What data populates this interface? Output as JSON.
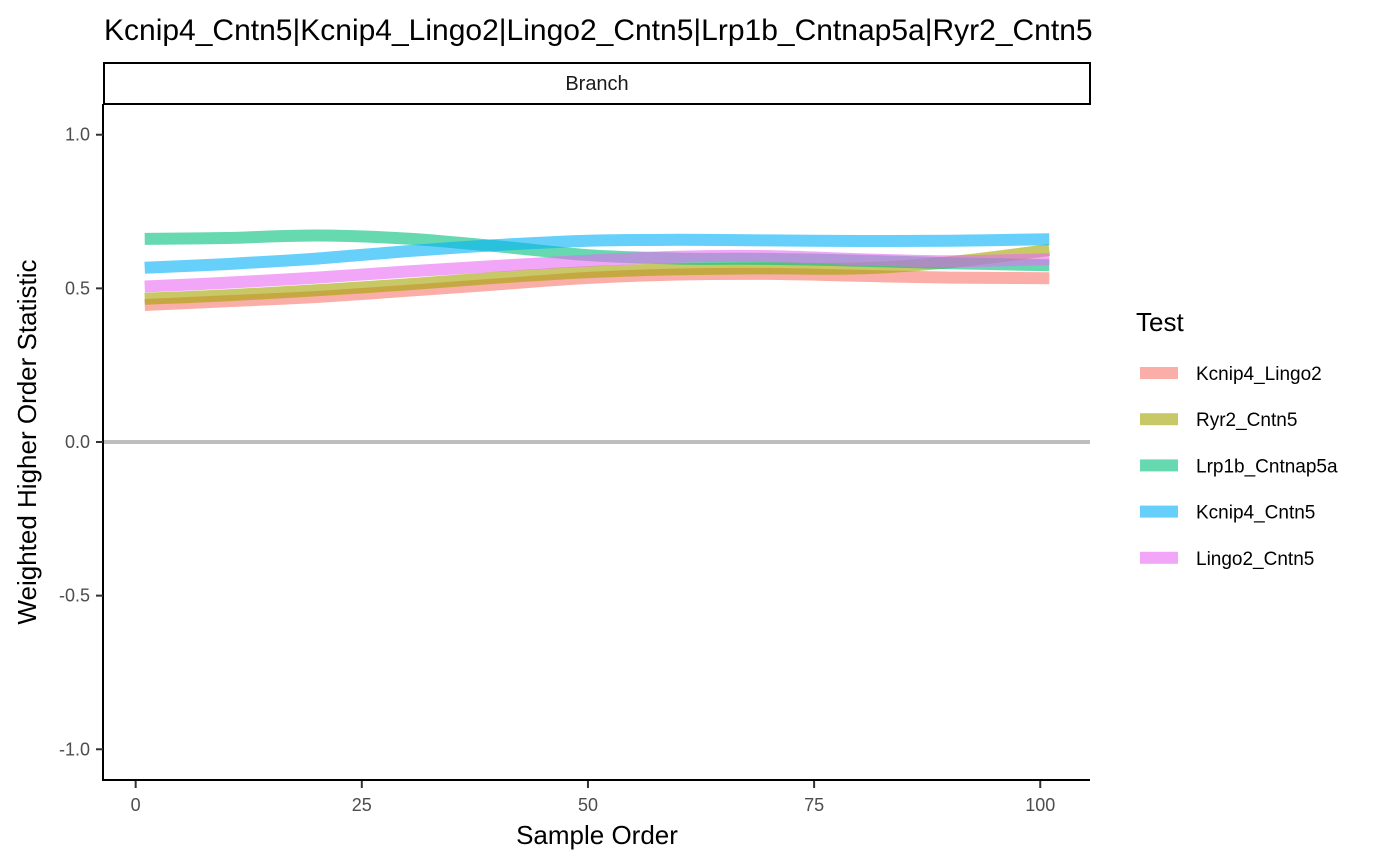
{
  "chart_data": {
    "type": "line",
    "title": "Kcnip4_Cntn5|Kcnip4_Lingo2|Lingo2_Cntn5|Lrp1b_Cntnap5a|Ryr2_Cntn5",
    "facet_label": "Branch",
    "xlabel": "Sample Order",
    "ylabel": "Weighted Higher Order Statistic",
    "xlim": [
      -3.5,
      105.5
    ],
    "ylim": [
      -1.1,
      1.1
    ],
    "x_ticks": [
      0,
      25,
      50,
      75,
      100
    ],
    "x_tick_labels": [
      "0",
      "25",
      "50",
      "75",
      "100"
    ],
    "y_ticks": [
      -1.0,
      -0.5,
      0.0,
      0.5,
      1.0
    ],
    "y_tick_labels": [
      "-1.0",
      "-0.5",
      "0.0",
      "0.5",
      "1.0"
    ],
    "reference_line": 0.0,
    "grid": false,
    "legend": {
      "title": "Test",
      "position": "right"
    },
    "x": [
      1,
      10,
      20,
      30,
      40,
      50,
      60,
      70,
      80,
      90,
      101
    ],
    "series": [
      {
        "name": "Kcnip4_Lingo2",
        "color": "#F8766D",
        "values": [
          0.446,
          0.458,
          0.472,
          0.492,
          0.513,
          0.534,
          0.545,
          0.547,
          0.541,
          0.535,
          0.533
        ]
      },
      {
        "name": "Ryr2_Cntn5",
        "color": "#A3A500",
        "values": [
          0.466,
          0.477,
          0.494,
          0.513,
          0.535,
          0.553,
          0.562,
          0.565,
          0.565,
          0.585,
          0.625
        ]
      },
      {
        "name": "Lrp1b_Cntnap5a",
        "color": "#00BF7D",
        "values": [
          0.661,
          0.664,
          0.672,
          0.662,
          0.637,
          0.608,
          0.597,
          0.596,
          0.59,
          0.582,
          0.575
        ]
      },
      {
        "name": "Kcnip4_Cntn5",
        "color": "#00B0F6",
        "values": [
          0.567,
          0.579,
          0.597,
          0.621,
          0.641,
          0.655,
          0.658,
          0.656,
          0.654,
          0.655,
          0.66
        ]
      },
      {
        "name": "Lingo2_Cntn5",
        "color": "#E76BF3",
        "values": [
          0.506,
          0.518,
          0.535,
          0.555,
          0.573,
          0.59,
          0.603,
          0.605,
          0.595,
          0.588,
          0.595
        ]
      }
    ]
  }
}
